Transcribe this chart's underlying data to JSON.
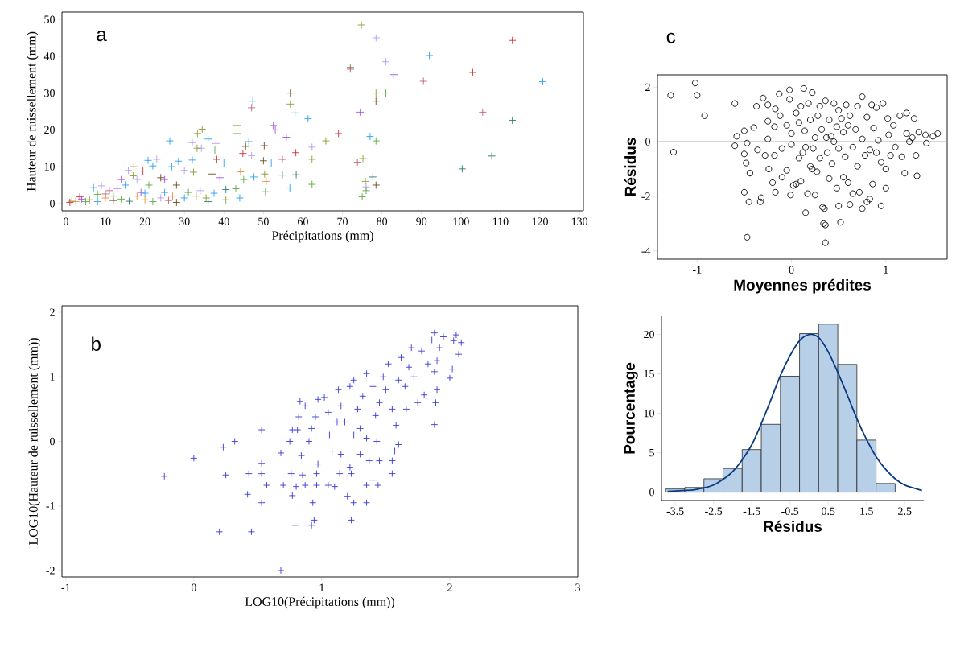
{
  "chart_data": [
    {
      "type": "scatter",
      "xlabel": "Précipitations (mm)",
      "ylabel": "Hauteur de ruissellement (mm)",
      "annotations": [
        "a"
      ],
      "marker": "cross",
      "xlim": [
        -1,
        131
      ],
      "ylim": [
        -2,
        52
      ],
      "xticks": [
        0,
        10,
        20,
        30,
        40,
        50,
        60,
        70,
        80,
        90,
        100,
        110,
        120,
        130
      ],
      "yticks": [
        0,
        10,
        20,
        30,
        40,
        50
      ],
      "x": [
        74.8,
        78.5,
        113,
        92,
        81,
        72,
        72,
        103,
        83,
        90.5,
        120.7,
        56.8,
        78.5,
        81,
        78.5,
        47.3,
        47,
        56.8,
        74.5,
        105.5,
        58,
        61.3,
        113,
        52.5,
        53,
        43.3,
        34.5,
        33.3,
        43.3,
        69,
        77,
        55.8,
        36,
        26.3,
        32,
        46.3,
        38,
        65.8,
        78.5,
        62.3,
        45.5,
        50.2,
        34.3,
        37.7,
        33.2,
        58.2,
        44.8,
        107.8,
        47,
        73.8,
        75.2,
        62.3,
        54.8,
        50,
        52,
        38.2,
        40,
        32,
        23,
        20.8,
        22,
        17.2,
        26.8,
        28.5,
        15.8,
        19.5,
        100.3,
        77.7,
        58.3,
        54.8,
        62.3,
        56.7,
        75.8,
        78.5,
        76,
        76,
        75,
        44,
        40.5,
        43,
        44.2,
        45,
        47.6,
        50.3,
        50.5,
        50.7,
        40.5,
        39,
        35.5,
        37.5,
        37,
        32.3,
        30,
        31,
        30,
        28,
        27,
        25,
        24,
        25,
        21,
        19,
        18,
        17,
        15,
        14,
        13,
        12,
        11,
        10,
        9,
        8,
        7,
        6,
        5,
        4,
        3.5,
        2.5,
        1.5,
        1,
        8,
        12,
        16,
        20,
        22,
        24,
        18,
        14,
        26,
        28,
        33,
        36,
        34,
        20,
        10
      ],
      "values": [
        48.5,
        45,
        44.3,
        40.2,
        38.5,
        37,
        36.5,
        35.6,
        35,
        33.2,
        33.1,
        30,
        30,
        30,
        27.8,
        27.8,
        26,
        27,
        24.8,
        24.8,
        24.6,
        23,
        22.6,
        21.2,
        20,
        21.2,
        20.2,
        19,
        19,
        19,
        18.2,
        18,
        17.5,
        17,
        16.5,
        16.8,
        16.3,
        17,
        17,
        15.3,
        15.5,
        15.7,
        15,
        14.5,
        15,
        13.8,
        13.6,
        12.9,
        13,
        11.2,
        12.2,
        12,
        12,
        11.6,
        11,
        12,
        11,
        11.8,
        12,
        11.7,
        10.2,
        10,
        10,
        11.5,
        9,
        8.8,
        9.4,
        7.2,
        7.8,
        7.7,
        5.2,
        4.2,
        6,
        5,
        4.5,
        3.5,
        1.8,
        1.5,
        1,
        4,
        8.6,
        6.5,
        7.2,
        8,
        3.2,
        6,
        3.8,
        7,
        1.5,
        2.8,
        8,
        8.5,
        9,
        3,
        1.5,
        5,
        2,
        6.5,
        7,
        3,
        5,
        3,
        6.5,
        7.5,
        5,
        6.5,
        4,
        2,
        3.5,
        1.5,
        4.8,
        2.5,
        4.3,
        1,
        0.5,
        1.2,
        1.8,
        0.5,
        0.6,
        0.3,
        0.5,
        0.8,
        0.6,
        1,
        0.5,
        1.5,
        2,
        1.2,
        0.8,
        0.3,
        2,
        0.5,
        3.5,
        2.8,
        2.6
      ],
      "colors": [
        "#8a9a30",
        "#b899f0",
        "#c83040",
        "#2aa0f0",
        "#b899f0",
        "#5aaa40",
        "#c06080",
        "#c83040",
        "#a050e0",
        "#c06080",
        "#2aa0f0",
        "#6b4a20",
        "#8a9a30",
        "#5aaa40",
        "#6b4a20",
        "#2aa0f0",
        "#c06080",
        "#8a9a30",
        "#a050e0",
        "#c06080",
        "#2aa0f0",
        "#2aa0f0",
        "#2a7a70",
        "#a050e0",
        "#a050e0",
        "#8a9a30",
        "#8a9a30",
        "#8a9a30",
        "#5aaa40",
        "#c83040",
        "#2aa0f0",
        "#a050e0",
        "#2aa0f0",
        "#2aa0f0",
        "#b899f0",
        "#2aa0f0",
        "#b899f0",
        "#8a9a30",
        "#5aaa40",
        "#b899f0",
        "#6b4a20",
        "#6b4a20",
        "#b899f0",
        "#5aaa40",
        "#8a9a30",
        "#c83040",
        "#c83040",
        "#2a7a70",
        "#b899f0",
        "#c06080",
        "#8a9a30",
        "#8a9a30",
        "#c83040",
        "#6b4a20",
        "#2aa0f0",
        "#c83040",
        "#2aa0f0",
        "#2aa0f0",
        "#b899f0",
        "#2aa0f0",
        "#2aa0f0",
        "#8a9a30",
        "#2aa0f0",
        "#2aa0f0",
        "#b899f0",
        "#c83040",
        "#2a7a70",
        "#2a7a70",
        "#2a7a70",
        "#2a7a70",
        "#5aaa40",
        "#2aa0f0",
        "#8a9a30",
        "#6b4a20",
        "#b899f0",
        "#5aaa40",
        "#5aaa40",
        "#2aa0f0",
        "#8a9a30",
        "#5aaa40",
        "#e89030",
        "#5aaa40",
        "#2aa0f0",
        "#8a9a30",
        "#5aaa40",
        "#e89030",
        "#2a7a70",
        "#a050e0",
        "#8a9a30",
        "#2aa0f0",
        "#6b4a20",
        "#8a9a30",
        "#b899f0",
        "#5aaa40",
        "#2aa0f0",
        "#6b4a20",
        "#e89030",
        "#a050e0",
        "#6b4a20",
        "#2aa0f0",
        "#5aaa40",
        "#a050e0",
        "#b899f0",
        "#8a9a30",
        "#2aa0f0",
        "#a050e0",
        "#b899f0",
        "#5aaa40",
        "#c06080",
        "#e89030",
        "#b899f0",
        "#5aaa40",
        "#2aa0f0",
        "#8a9a30",
        "#5aaa40",
        "#a050e0",
        "#c83040",
        "#e89030",
        "#8a9a30",
        "#c83040",
        "#2aa0f0",
        "#6b4a20",
        "#2a7a70",
        "#e89030",
        "#5aaa40",
        "#b899f0",
        "#e89030",
        "#5aaa40",
        "#c06080",
        "#6b4a20",
        "#e89030",
        "#2a7a70",
        "#b899f0",
        "#2aa0f0",
        "#c06080"
      ]
    },
    {
      "type": "scatter",
      "xlabel": "LOG10(Précipitations (mm))",
      "ylabel": "LOG10(Hauteur de ruissellement (mm))",
      "annotations": [
        "b"
      ],
      "marker": "cross",
      "color": "#3838d8",
      "xlim": [
        -1.03,
        3
      ],
      "ylim": [
        -2.1,
        2.1
      ],
      "xticks": [
        -1,
        0,
        1,
        2,
        3
      ],
      "yticks": [
        -2,
        -1,
        0,
        1,
        2
      ],
      "x": [
        -0.23,
        0,
        0.23,
        0.32,
        0.25,
        0.2,
        0.45,
        0.42,
        0.53,
        0.43,
        0.53,
        0.53,
        0.57,
        0.53,
        0.68,
        0.7,
        0.68,
        0.77,
        0.79,
        0.8,
        0.76,
        0.75,
        0.77,
        0.81,
        0.82,
        0.83,
        0.87,
        0.84,
        0.85,
        0.87,
        0.93,
        0.92,
        0.94,
        0.96,
        0.97,
        0.96,
        0.9,
        0.92,
        0.95,
        0.97,
        1.02,
        1.05,
        1.06,
        1.08,
        1.05,
        1.1,
        1.14,
        1.15,
        1.12,
        1.13,
        1.15,
        1.18,
        1.2,
        1.22,
        1.23,
        1.25,
        1.23,
        1.25,
        1.22,
        1.25,
        1.28,
        1.3,
        1.3,
        1.35,
        1.35,
        1.37,
        1.35,
        1.32,
        1.35,
        1.4,
        1.42,
        1.4,
        1.44,
        1.45,
        1.43,
        1.45,
        1.48,
        1.5,
        1.52,
        1.55,
        1.55,
        1.55,
        1.57,
        1.58,
        1.6,
        1.62,
        1.6,
        1.65,
        1.66,
        1.68,
        1.7,
        1.72,
        1.75,
        1.78,
        1.8,
        1.83,
        1.86,
        1.88,
        1.88,
        1.88,
        1.9,
        1.89,
        1.92,
        1.95,
        2,
        2.02,
        2.05,
        2.07,
        2.03,
        2.09,
        1.9
      ],
      "values": [
        -0.54,
        -0.26,
        -0.09,
        0,
        -0.52,
        -1.4,
        -1.4,
        -0.82,
        -0.34,
        -0.5,
        -0.5,
        -0.95,
        -0.68,
        0.18,
        -0.18,
        -0.68,
        -2,
        -0.84,
        -1.3,
        -0.7,
        -0.5,
        0,
        0.18,
        0.18,
        0.38,
        0.62,
        0.55,
        -0.22,
        -0.52,
        -0.68,
        -0.95,
        -1.3,
        -1.22,
        -0.5,
        -0.35,
        -0.68,
        0,
        0.2,
        0.38,
        0.65,
        0.68,
        0.45,
        0.1,
        -0.15,
        -0.68,
        -0.7,
        -0.5,
        -0.2,
        0.3,
        0.8,
        0.55,
        0.3,
        -0.85,
        -0.4,
        -1.22,
        -0.95,
        -0.5,
        0.1,
        0.85,
        0.95,
        0.5,
        0.2,
        -0.2,
        -0.95,
        -0.68,
        -0.3,
        0.05,
        0.7,
        1.05,
        0.85,
        0.4,
        -0.6,
        -0.68,
        -0.3,
        0,
        0.6,
        1,
        0.8,
        1.2,
        0.5,
        -0.3,
        -0.5,
        -0.15,
        0.25,
        0.95,
        1.3,
        -0.05,
        0.85,
        0.5,
        1.15,
        1.45,
        1,
        0.6,
        1.4,
        0.72,
        1.2,
        1.57,
        1.68,
        1.08,
        0.26,
        0.8,
        0.6,
        1.45,
        1.62,
        0.98,
        1.12,
        1.65,
        1.35,
        1.56,
        1.53,
        1.25
      ]
    },
    {
      "type": "scatter",
      "xlabel": "Moyennes prédites",
      "ylabel": "Résidus",
      "annotations": [
        "c"
      ],
      "marker": "circle",
      "color": "#000000",
      "xlim": [
        -1.42,
        1.65
      ],
      "ylim": [
        -4.3,
        2.45
      ],
      "xticks": [
        -1,
        0,
        1
      ],
      "yticks": [
        -4,
        -2,
        0,
        2
      ],
      "ref_lines": [
        {
          "axis": "y",
          "value": 0,
          "color": "#b0b0b0"
        }
      ],
      "x": [
        -1.28,
        -1.25,
        -1.02,
        -1,
        -0.92,
        -0.6,
        -0.58,
        -0.6,
        -0.5,
        -0.5,
        -0.48,
        -0.47,
        -0.44,
        -0.5,
        -0.45,
        -0.47,
        -0.4,
        -0.37,
        -0.36,
        -0.33,
        -0.32,
        -0.3,
        -0.28,
        -0.25,
        -0.25,
        -0.25,
        -0.24,
        -0.2,
        -0.17,
        -0.18,
        -0.17,
        -0.18,
        -0.13,
        -0.12,
        -0.1,
        -0.1,
        -0.05,
        -0.05,
        -0.02,
        -0.02,
        -0.01,
        0,
        0,
        0.02,
        0.05,
        0.05,
        0.08,
        0.08,
        0.1,
        0.1,
        0.12,
        0.13,
        0.14,
        0.15,
        0.15,
        0.17,
        0.18,
        0.2,
        0.2,
        0.22,
        0.22,
        0.23,
        0.25,
        0.25,
        0.27,
        0.28,
        0.3,
        0.3,
        0.32,
        0.33,
        0.34,
        0.35,
        0.36,
        0.36,
        0.36,
        0.37,
        0.38,
        0.4,
        0.4,
        0.42,
        0.43,
        0.45,
        0.45,
        0.48,
        0.48,
        0.5,
        0.5,
        0.5,
        0.52,
        0.53,
        0.55,
        0.55,
        0.57,
        0.58,
        0.6,
        0.6,
        0.62,
        0.62,
        0.65,
        0.65,
        0.68,
        0.7,
        0.7,
        0.72,
        0.75,
        0.75,
        0.75,
        0.78,
        0.8,
        0.8,
        0.83,
        0.83,
        0.85,
        0.86,
        0.87,
        0.9,
        0.9,
        0.92,
        0.95,
        0.95,
        0.97,
        1,
        1,
        1.02,
        1.03,
        1.05,
        1.08,
        1.1,
        1.15,
        1.17,
        1.2,
        1.22,
        1.22,
        1.25,
        1.28,
        1.3,
        1.32,
        1.33,
        1.35,
        1.42,
        1.43,
        1.5,
        1.55
      ],
      "values": [
        1.7,
        -0.38,
        2.15,
        1.7,
        0.95,
        1.4,
        0.2,
        -0.15,
        0.4,
        -0.45,
        -0.78,
        -0.05,
        -1.15,
        -1.85,
        -2.2,
        -3.5,
        0.52,
        1.3,
        -0.3,
        -2.2,
        -2.05,
        1.6,
        -0.5,
        0.75,
        1.35,
        0.1,
        -1,
        -1.5,
        -1.85,
        0.55,
        1.2,
        -0.5,
        1.75,
        0.95,
        -0.25,
        -1.3,
        0.6,
        -1.05,
        1.9,
        1.55,
        -1.95,
        0.3,
        -0.1,
        -1.6,
        1.05,
        -1.55,
        0.7,
        -0.6,
        1.3,
        -1.45,
        -0.4,
        1.95,
        0.4,
        -0.2,
        -2.6,
        -1.9,
        1.4,
        0.8,
        -0.9,
        -1,
        1.8,
        -0.25,
        0.15,
        -1.95,
        -1.1,
        0.95,
        1.3,
        -0.6,
        0.45,
        -2.4,
        -3,
        -2.45,
        -3.05,
        -3.7,
        1.5,
        0.15,
        -0.4,
        -1.35,
        0.8,
        0.2,
        -0.8,
        1.4,
        0,
        -1.7,
        0.55,
        -0.25,
        1.15,
        -2.35,
        -2.95,
        0.85,
        -1.3,
        0.35,
        -0.55,
        1.35,
        -1.5,
        0.6,
        -2.3,
        0.95,
        -0.2,
        -1.9,
        0.45,
        1.3,
        -0.9,
        -1.85,
        1.65,
        0.1,
        -2.45,
        -0.5,
        -2.2,
        0.9,
        -0.3,
        -2.1,
        1.35,
        -1.55,
        0.5,
        1.25,
        -0.4,
        0.05,
        -2.35,
        -0.75,
        1.4,
        -1,
        -1.7,
        0.85,
        0.25,
        -0.5,
        0.6,
        -0.2,
        0.95,
        -0.55,
        -1.15,
        1.05,
        0.3,
        0,
        0.15,
        0.85,
        -0.5,
        -1.25,
        0.35,
        0.25,
        -0.05,
        0.2,
        0.3
      ]
    },
    {
      "type": "histogram",
      "xlabel": "Résidus",
      "ylabel": "Pourcentage",
      "color": "#b8cfe8",
      "xlim": [
        -3.86,
        3
      ],
      "ylim": [
        -1.06,
        22.3
      ],
      "xticks": [
        -3.5,
        -2.5,
        -1.5,
        -0.5,
        0.5,
        1.5,
        2.5
      ],
      "yticks": [
        0,
        5,
        10,
        15,
        20
      ],
      "bins": [
        -3.75,
        -3.25,
        -2.75,
        -2.25,
        -1.75,
        -1.25,
        -0.75,
        -0.25,
        0.25,
        0.75,
        1.25,
        1.75,
        2.25
      ],
      "values": [
        0.4,
        0.6,
        1.7,
        3,
        5.4,
        8.6,
        14.7,
        20.1,
        21.3,
        16.2,
        6.6,
        1.1
      ],
      "series": [
        {
          "type": "line",
          "color": "#0a3a80",
          "line_style": "solid",
          "x": [
            -3.7,
            -3.3,
            -3,
            -2.7,
            -2.5,
            -2.2,
            -2,
            -1.75,
            -1.5,
            -1.25,
            -1,
            -0.75,
            -0.5,
            -0.25,
            0,
            0.25,
            0.5,
            0.75,
            1,
            1.25,
            1.5,
            1.75,
            2,
            2.25,
            2.5,
            2.75,
            2.95
          ],
          "values": [
            0.1,
            0.2,
            0.3,
            0.6,
            0.9,
            1.8,
            2.6,
            4.1,
            6,
            8.7,
            11.7,
            14.8,
            17.3,
            19.2,
            20,
            19.6,
            17.8,
            15.2,
            12.3,
            9.3,
            6.7,
            4.5,
            2.9,
            1.7,
            0.9,
            0.5,
            0.2
          ]
        }
      ]
    }
  ]
}
